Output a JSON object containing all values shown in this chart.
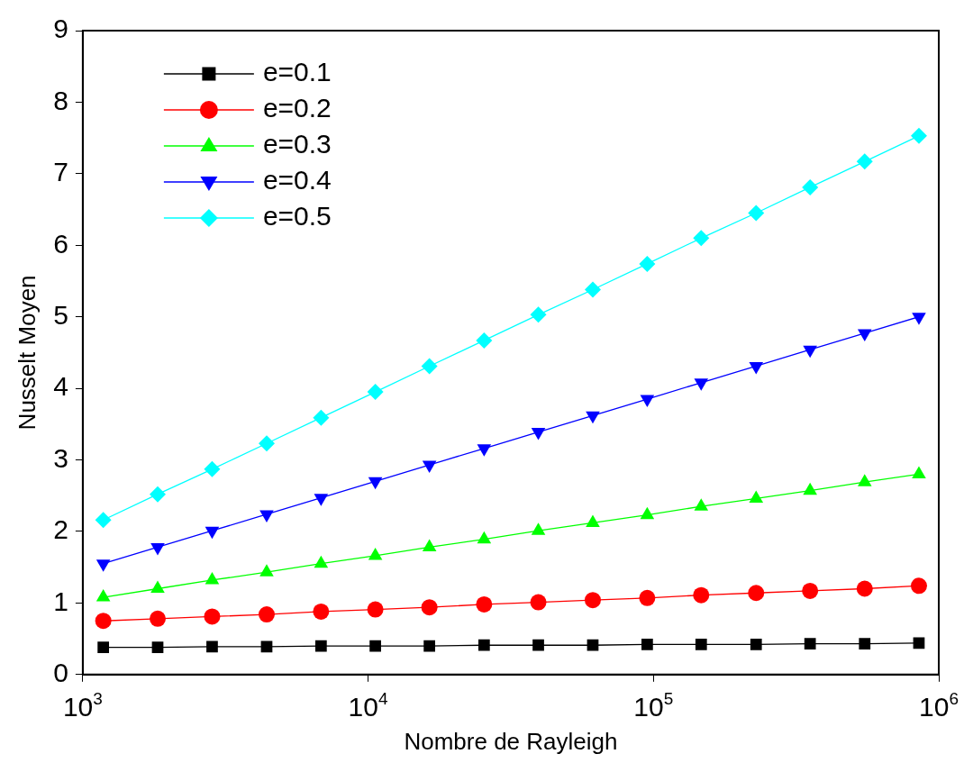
{
  "chart_data": {
    "type": "line",
    "xlabel": "Nombre de Rayleigh",
    "ylabel": "Nusselt Moyen",
    "x": [
      1180,
      1830,
      2840,
      4410,
      6840,
      10600,
      16400,
      25500,
      39500,
      61300,
      95100,
      147000,
      229000,
      354000,
      550000,
      852000
    ],
    "log": "x",
    "xlim": [
      1000,
      1000000
    ],
    "xticks": [
      {
        "value": 1000,
        "label": "10$^{3}$"
      },
      {
        "value": 10000,
        "label": "10$^{4}$"
      },
      {
        "value": 100000,
        "label": "10$^{5}$"
      },
      {
        "value": 1000000,
        "label": "10$^{6}$"
      }
    ],
    "ylim": [
      0,
      9
    ],
    "yticks": [
      0,
      1,
      2,
      3,
      4,
      5,
      6,
      7,
      8,
      9
    ],
    "grid": false,
    "legend": "top left",
    "line_style": "solid",
    "series": [
      {
        "name": "e=0.1",
        "color": "#000000",
        "marker": "square",
        "values": [
          0.38,
          0.38,
          0.39,
          0.39,
          0.4,
          0.4,
          0.4,
          0.41,
          0.41,
          0.41,
          0.42,
          0.42,
          0.42,
          0.43,
          0.43,
          0.44
        ]
      },
      {
        "name": "e=0.2",
        "color": "#ff0000",
        "marker": "circle",
        "values": [
          0.75,
          0.78,
          0.81,
          0.84,
          0.88,
          0.91,
          0.94,
          0.98,
          1.01,
          1.04,
          1.07,
          1.11,
          1.14,
          1.17,
          1.2,
          1.24
        ]
      },
      {
        "name": "e=0.3",
        "color": "#00ff00",
        "marker": "triangle",
        "values": [
          1.08,
          1.2,
          1.32,
          1.43,
          1.55,
          1.66,
          1.78,
          1.89,
          2.01,
          2.12,
          2.23,
          2.35,
          2.46,
          2.57,
          2.69,
          2.8
        ]
      },
      {
        "name": "e=0.4",
        "color": "#0000ff",
        "marker": "triangle-down",
        "values": [
          1.55,
          1.78,
          2.01,
          2.24,
          2.47,
          2.7,
          2.93,
          3.16,
          3.39,
          3.62,
          3.85,
          4.08,
          4.31,
          4.54,
          4.77,
          5.0
        ]
      },
      {
        "name": "e=0.5",
        "color": "#00ffff",
        "marker": "diamond",
        "values": [
          2.16,
          2.52,
          2.87,
          3.23,
          3.59,
          3.95,
          4.31,
          4.67,
          5.03,
          5.38,
          5.74,
          6.1,
          6.45,
          6.81,
          7.17,
          7.53
        ]
      }
    ]
  }
}
